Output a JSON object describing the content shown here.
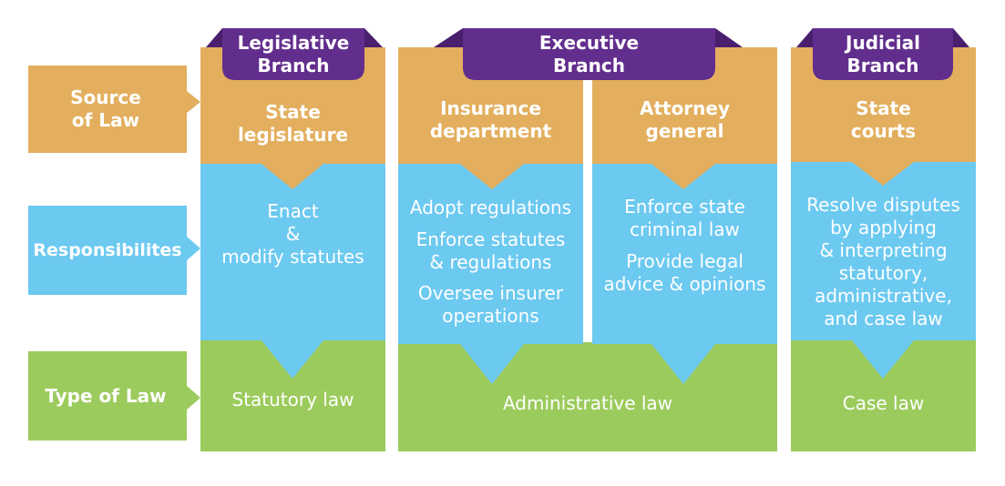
{
  "colors": {
    "tan": "#E3AF5E",
    "blue": "#6CC9F0",
    "green": "#9CCB5D",
    "purple": "#622E8D",
    "purple_dark": "#4A1F6E",
    "white": "#FFFFFF"
  },
  "row_labels": {
    "source": "Source\nof Law",
    "responsibilities": "Responsibilites",
    "type": "Type of Law"
  },
  "branches": {
    "legislative": "Legislative\nBranch",
    "executive": "Executive\nBranch",
    "judicial": "Judicial\nBranch"
  },
  "sources": {
    "state_legislature": "State\nlegislature",
    "insurance_department": "Insurance\ndepartment",
    "attorney_general": "Attorney\ngeneral",
    "state_courts": "State\ncourts"
  },
  "responsibilities": {
    "legislature": "Enact\n&\nmodify statutes",
    "insurance_1": "Adopt regulations",
    "insurance_2": "Enforce statutes\n& regulations",
    "insurance_3": "Oversee insurer\noperations",
    "attorney_1": "Enforce state\ncriminal law",
    "attorney_2": "Provide legal\nadvice & opinions",
    "courts": "Resolve disputes\nby applying\n& interpreting\nstatutory,\nadministrative,\nand case law"
  },
  "types_of_law": {
    "statutory": "Statutory law",
    "administrative": "Administrative law",
    "case": "Case law"
  }
}
